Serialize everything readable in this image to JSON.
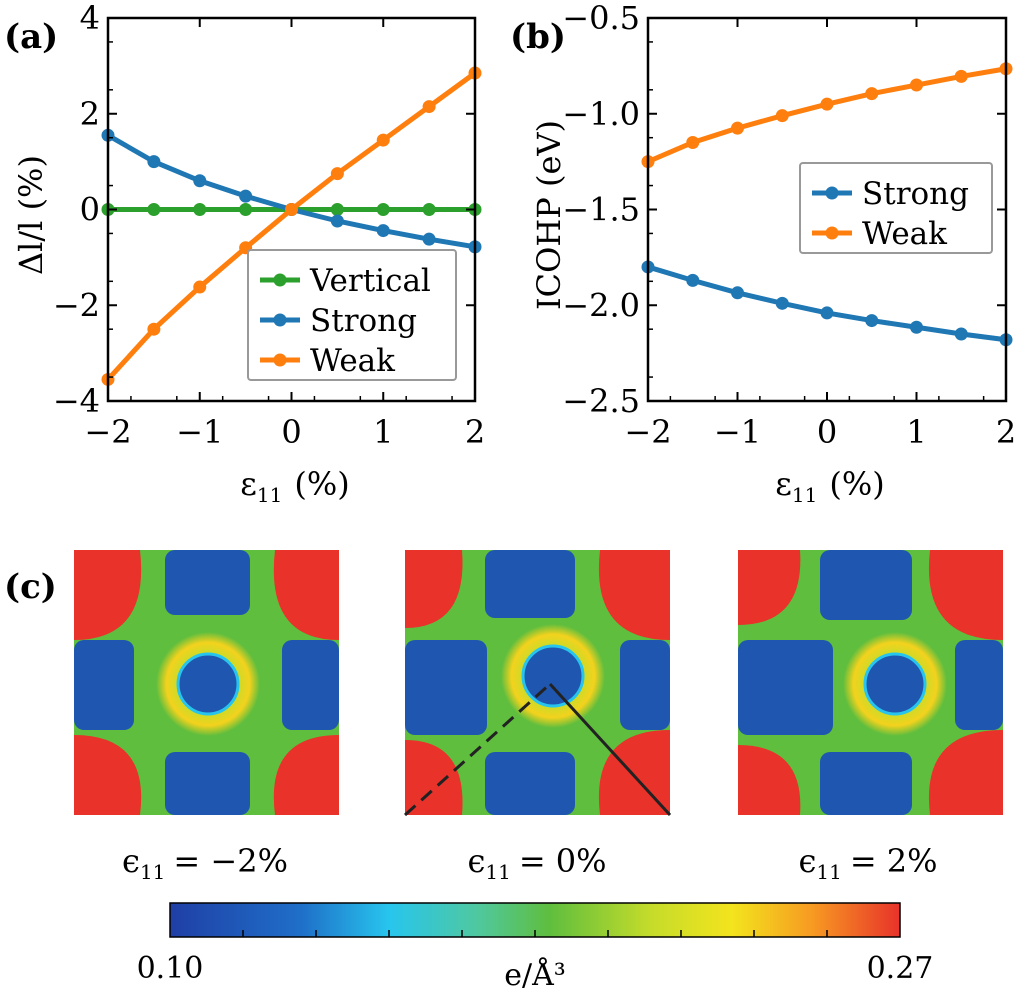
{
  "chart_data": [
    {
      "panel_label": "(a)",
      "type": "line",
      "xlabel_symbol": "ε",
      "xlabel_sub": "11",
      "xlabel_unit": "(%)",
      "ylabel": "Δl/l (%)",
      "xlim": [
        -2,
        2
      ],
      "ylim": [
        -4,
        4
      ],
      "xticks": [
        "−2",
        "−1",
        "0",
        "1",
        "2"
      ],
      "yticks": [
        "−4",
        "−2",
        "0",
        "2",
        "4"
      ],
      "x": [
        -2,
        -1.5,
        -1,
        -0.5,
        0,
        0.5,
        1,
        1.5,
        2
      ],
      "series": [
        {
          "name": "Vertical",
          "color": "#2ca02c",
          "values": [
            0,
            0,
            0,
            0,
            0,
            0,
            0,
            0,
            0
          ]
        },
        {
          "name": "Strong",
          "color": "#1f77b4",
          "values": [
            1.55,
            1.0,
            0.6,
            0.28,
            0,
            -0.24,
            -0.44,
            -0.62,
            -0.78
          ]
        },
        {
          "name": "Weak",
          "color": "#ff7f0e",
          "values": [
            -3.55,
            -2.5,
            -1.62,
            -0.8,
            0,
            0.75,
            1.45,
            2.15,
            2.85
          ]
        }
      ],
      "legend_position": "lower-right"
    },
    {
      "panel_label": "(b)",
      "type": "line",
      "xlabel_symbol": "ε",
      "xlabel_sub": "11",
      "xlabel_unit": "(%)",
      "ylabel": "ICOHP (eV)",
      "xlim": [
        -2,
        2
      ],
      "ylim": [
        -2.5,
        -0.5
      ],
      "xticks": [
        "−2",
        "−1",
        "0",
        "1",
        "2"
      ],
      "yticks": [
        "−2.5",
        "−2.0",
        "−1.5",
        "−1.0",
        "−0.5"
      ],
      "x": [
        -2,
        -1.5,
        -1,
        -0.5,
        0,
        0.5,
        1,
        1.5,
        2
      ],
      "series": [
        {
          "name": "Strong",
          "color": "#1f77b4",
          "values": [
            -1.8,
            -1.87,
            -1.935,
            -1.99,
            -2.04,
            -2.08,
            -2.115,
            -2.15,
            -2.18
          ]
        },
        {
          "name": "Weak",
          "color": "#ff7f0e",
          "values": [
            -1.25,
            -1.15,
            -1.075,
            -1.01,
            -0.95,
            -0.895,
            -0.85,
            -0.805,
            -0.765
          ]
        }
      ],
      "legend_position": "center-right"
    },
    {
      "panel_label": "(c)",
      "type": "heatmap",
      "maps": [
        {
          "eps_label": "ϵ",
          "eps_sub": "11",
          "eps_value": "= −2%"
        },
        {
          "eps_label": "ϵ",
          "eps_sub": "11",
          "eps_value": "= 0%"
        },
        {
          "eps_label": "ϵ",
          "eps_sub": "11",
          "eps_value": "= 2%"
        }
      ],
      "colorbar": {
        "min_label": "0.10",
        "max_label": "0.27",
        "unit_label": "e/Å³",
        "min": 0.1,
        "max": 0.27,
        "colors": [
          "#1f3fa6",
          "#1f6fc8",
          "#27c5ee",
          "#4fc8a0",
          "#5fbe3e",
          "#c6dc2a",
          "#f3e41d",
          "#f79a22",
          "#e8322a"
        ]
      }
    }
  ]
}
